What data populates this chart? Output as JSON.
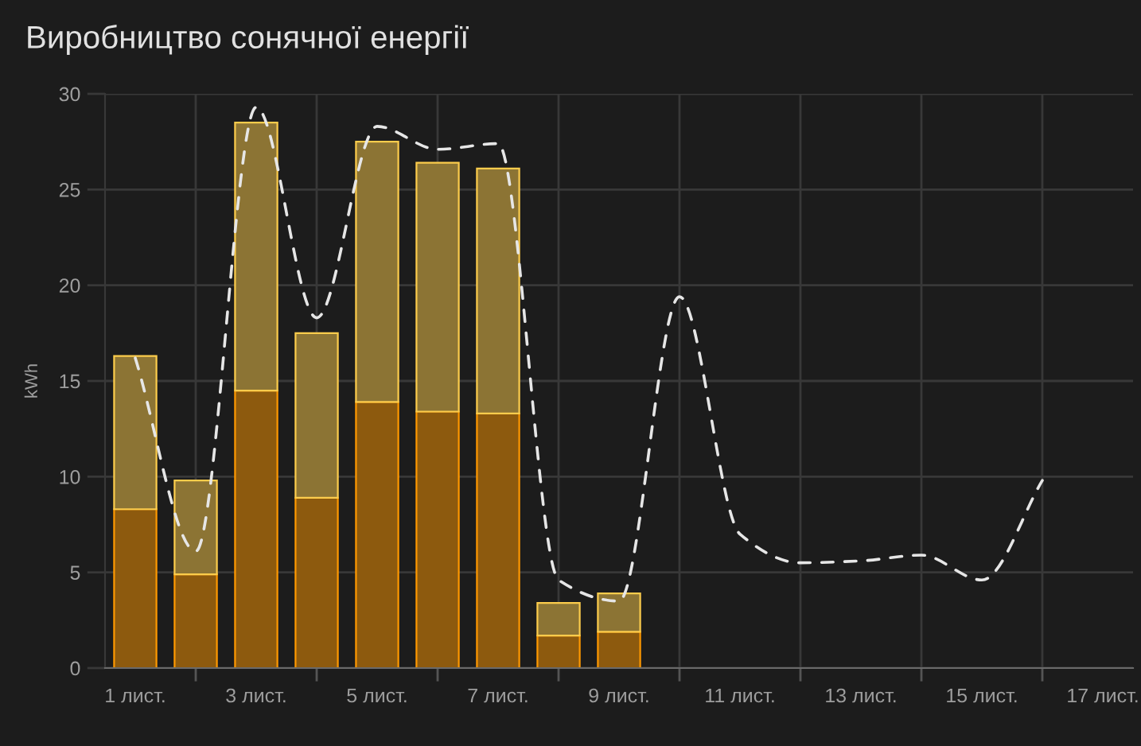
{
  "chart_data": {
    "type": "bar",
    "title": "Виробництво сонячної енергії",
    "ylabel": "kWh",
    "categories": [
      "1 лист.",
      null,
      "3 лист.",
      null,
      "5 лист.",
      null,
      "7 лист.",
      null,
      "9 лист.",
      null,
      "11 лист.",
      null,
      "13 лист.",
      null,
      "15 лист.",
      null,
      "17 лист."
    ],
    "stacked": true,
    "series": [
      {
        "color": "#8d5a0e",
        "values": [
          8.3,
          4.9,
          14.5,
          8.9,
          13.9,
          13.4,
          13.3,
          1.7,
          1.9,
          null,
          null,
          null,
          null,
          null,
          null,
          null,
          null
        ]
      },
      {
        "color": "#8c7434",
        "values": [
          8.0,
          4.9,
          14.0,
          8.6,
          13.6,
          13.0,
          12.8,
          1.7,
          2.0,
          null,
          null,
          null,
          null,
          null,
          null,
          null,
          null
        ]
      },
      {
        "type": "line",
        "color": "#e6e6e6",
        "line_style": "dashed",
        "values": [
          16.2,
          6.1,
          29.3,
          18.3,
          28.3,
          27.1,
          27.4,
          4.6,
          3.5,
          19.4,
          7.0,
          5.5,
          5.6,
          5.9,
          4.6,
          9.8,
          null
        ]
      }
    ],
    "ylim": [
      0,
      30
    ],
    "yticks": [
      0,
      5,
      10,
      15,
      20,
      25,
      30
    ],
    "grid": true
  }
}
